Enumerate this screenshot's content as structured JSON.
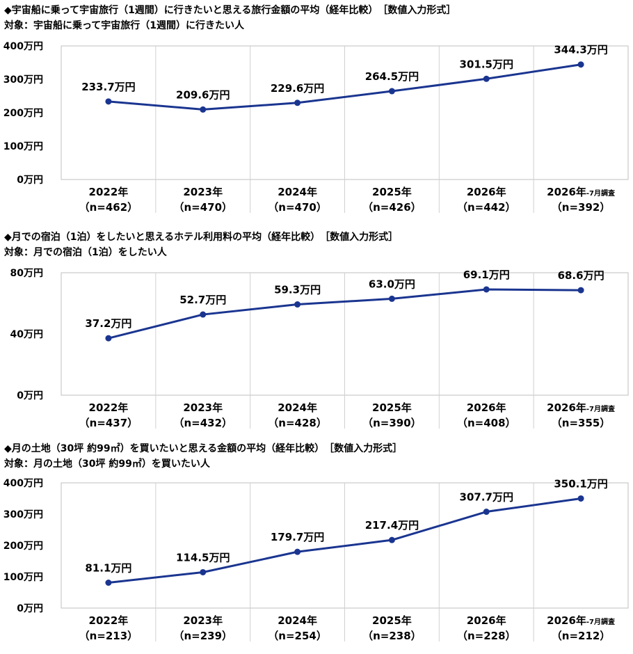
{
  "chart_data": [
    {
      "type": "line",
      "title": "◆宇宙船に乗って宇宙旅行（1週間）に行きたいと思える旅行金額の平均（経年比較）　［数値入力形式］",
      "subtitle": "対象：宇宙船に乗って宇宙旅行（1週間）に行きたい人",
      "categories": [
        "2022年",
        "2023年",
        "2024年",
        "2025年",
        "2026年",
        "2026年"
      ],
      "category_suffix": [
        "",
        "",
        "",
        "",
        "",
        "-7月調査"
      ],
      "sample_sizes": [
        "（n=462）",
        "（n=470）",
        "（n=470）",
        "（n=426）",
        "（n=442）",
        "（n=392）"
      ],
      "values": [
        233.7,
        209.6,
        229.6,
        264.5,
        301.5,
        344.3
      ],
      "value_labels": [
        "233.7万円",
        "209.6万円",
        "229.6万円",
        "264.5万円",
        "301.5万円",
        "344.3万円"
      ],
      "yticks": [
        0,
        100,
        200,
        300,
        400
      ],
      "ytick_labels": [
        "0万円",
        "100万円",
        "200万円",
        "300万円",
        "400万円"
      ],
      "ylim": [
        0,
        400
      ],
      "grid": "vertical",
      "color": "#1a3590"
    },
    {
      "type": "line",
      "title": "◆月での宿泊（1泊）をしたいと思えるホテル利用料の平均（経年比較）　［数値入力形式］",
      "subtitle": "対象：月での宿泊（1泊）をしたい人",
      "categories": [
        "2022年",
        "2023年",
        "2024年",
        "2025年",
        "2026年",
        "2026年"
      ],
      "category_suffix": [
        "",
        "",
        "",
        "",
        "",
        "-7月調査"
      ],
      "sample_sizes": [
        "（n=437）",
        "（n=432）",
        "（n=428）",
        "（n=390）",
        "（n=408）",
        "（n=355）"
      ],
      "values": [
        37.2,
        52.7,
        59.3,
        63.0,
        69.1,
        68.6
      ],
      "value_labels": [
        "37.2万円",
        "52.7万円",
        "59.3万円",
        "63.0万円",
        "69.1万円",
        "68.6万円"
      ],
      "yticks": [
        0,
        40,
        80
      ],
      "ytick_labels": [
        "0万円",
        "40万円",
        "80万円"
      ],
      "ylim": [
        0,
        80
      ],
      "grid": "vertical",
      "color": "#1a3590"
    },
    {
      "type": "line",
      "title": "◆月の土地（30坪 約99㎡）を買いたいと思える金額の平均（経年比較）　［数値入力形式］",
      "subtitle": "対象：月の土地（30坪 約99㎡）を買いたい人",
      "categories": [
        "2022年",
        "2023年",
        "2024年",
        "2025年",
        "2026年",
        "2026年"
      ],
      "category_suffix": [
        "",
        "",
        "",
        "",
        "",
        "-7月調査"
      ],
      "sample_sizes": [
        "（n=213）",
        "（n=239）",
        "（n=254）",
        "（n=238）",
        "（n=228）",
        "（n=212）"
      ],
      "values": [
        81.1,
        114.5,
        179.7,
        217.4,
        307.7,
        350.1
      ],
      "value_labels": [
        "81.1万円",
        "114.5万円",
        "179.7万円",
        "217.4万円",
        "307.7万円",
        "350.1万円"
      ],
      "yticks": [
        0,
        100,
        200,
        300,
        400
      ],
      "ytick_labels": [
        "0万円",
        "100万円",
        "200万円",
        "300万円",
        "400万円"
      ],
      "ylim": [
        0,
        400
      ],
      "grid": "vertical",
      "color": "#1a3590"
    }
  ]
}
